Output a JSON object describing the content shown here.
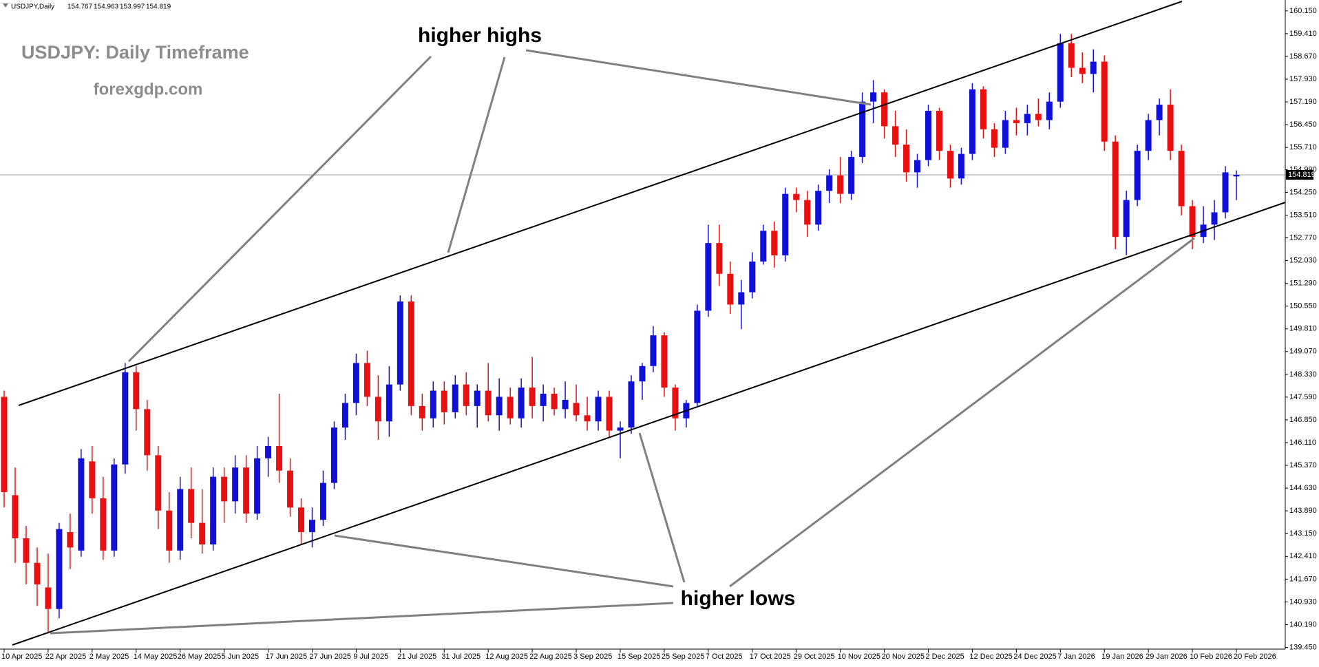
{
  "chart_data": {
    "type": "candlestick",
    "symbol": "USDJPY,Daily",
    "title": "USDJPY: Daily Timeframe",
    "watermark": "forexgdp.com",
    "annotations": [
      "higher highs",
      "higher lows"
    ],
    "up_color": "#1010d8",
    "down_color": "#e81010",
    "current_price": 154.819,
    "ylim": [
      139.395,
      160.505
    ],
    "yticks": [
      {
        "value": 139.45,
        "label": "139.450"
      },
      {
        "value": 140.19,
        "label": "140.190"
      },
      {
        "value": 140.93,
        "label": "140.930"
      },
      {
        "value": 141.67,
        "label": "141.670"
      },
      {
        "value": 142.41,
        "label": "142.410"
      },
      {
        "value": 143.15,
        "label": "143.150"
      },
      {
        "value": 143.89,
        "label": "143.890"
      },
      {
        "value": 144.63,
        "label": "144.630"
      },
      {
        "value": 145.37,
        "label": "145.370"
      },
      {
        "value": 146.11,
        "label": "146.110"
      },
      {
        "value": 146.85,
        "label": "146.850"
      },
      {
        "value": 147.59,
        "label": "147.590"
      },
      {
        "value": 148.33,
        "label": "148.330"
      },
      {
        "value": 149.07,
        "label": "149.070"
      },
      {
        "value": 149.81,
        "label": "149.810"
      },
      {
        "value": 150.55,
        "label": "150.550"
      },
      {
        "value": 151.29,
        "label": "151.290"
      },
      {
        "value": 152.03,
        "label": "152.030"
      },
      {
        "value": 152.77,
        "label": "152.770"
      },
      {
        "value": 153.51,
        "label": "153.510"
      },
      {
        "value": 154.25,
        "label": "154.250"
      },
      {
        "value": 154.99,
        "label": "154.990"
      },
      {
        "value": 155.71,
        "label": "155.710"
      },
      {
        "value": 156.45,
        "label": "156.450"
      },
      {
        "value": 157.19,
        "label": "157.190"
      },
      {
        "value": 157.93,
        "label": "157.930"
      },
      {
        "value": 158.67,
        "label": "158.670"
      },
      {
        "value": 159.41,
        "label": "159.410"
      },
      {
        "value": 160.15,
        "label": "160.150"
      }
    ],
    "categories": [
      "10 Apr 2025",
      null,
      null,
      null,
      "22 Apr 2025",
      null,
      null,
      null,
      "2 May 2025",
      null,
      null,
      null,
      "14 May 2025",
      null,
      null,
      null,
      "26 May 2025",
      null,
      null,
      null,
      "5 Jun 2025",
      null,
      null,
      null,
      "17 Jun 2025",
      null,
      null,
      null,
      "27 Jun 2025",
      null,
      null,
      null,
      "9 Jul 2025",
      null,
      null,
      null,
      "21 Jul 2025",
      null,
      null,
      null,
      "31 Jul 2025",
      null,
      null,
      null,
      "12 Aug 2025",
      null,
      null,
      null,
      "22 Aug 2025",
      null,
      null,
      null,
      "3 Sep 2025",
      null,
      null,
      null,
      "15 Sep 2025",
      null,
      null,
      null,
      "25 Sep 2025",
      null,
      null,
      null,
      "7 Oct 2025",
      null,
      null,
      null,
      "17 Oct 2025",
      null,
      null,
      null,
      "29 Oct 2025",
      null,
      null,
      null,
      "10 Nov 2025",
      null,
      null,
      null,
      "20 Nov 2025",
      null,
      null,
      null,
      "2 Dec 2025",
      null,
      null,
      null,
      "12 Dec 2025",
      null,
      null,
      null,
      "24 Dec 2025",
      null,
      null,
      null,
      "7 Jan 2026",
      null,
      null,
      null,
      "19 Jan 2026",
      null,
      null,
      null,
      "29 Jan 2026",
      null,
      null,
      null,
      "10 Feb 2026",
      null,
      null,
      null,
      "20 Feb 2026"
    ],
    "ohlc": [
      [
        147.6,
        147.8,
        144.0,
        144.5
      ],
      [
        144.4,
        145.3,
        142.2,
        143.0
      ],
      [
        143.0,
        143.4,
        141.5,
        142.2
      ],
      [
        142.2,
        142.7,
        140.8,
        141.5
      ],
      [
        141.4,
        142.5,
        139.9,
        140.7
      ],
      [
        140.7,
        143.5,
        140.4,
        143.3
      ],
      [
        143.2,
        143.8,
        142.0,
        142.7
      ],
      [
        142.6,
        145.9,
        142.4,
        145.6
      ],
      [
        145.5,
        146.0,
        143.8,
        144.3
      ],
      [
        144.3,
        145.0,
        142.3,
        142.6
      ],
      [
        142.6,
        145.6,
        142.4,
        145.4
      ],
      [
        145.4,
        148.7,
        145.1,
        148.4
      ],
      [
        148.4,
        148.6,
        146.5,
        147.2
      ],
      [
        147.2,
        147.5,
        145.2,
        145.7
      ],
      [
        145.7,
        146.0,
        143.3,
        143.9
      ],
      [
        143.9,
        144.5,
        142.2,
        142.6
      ],
      [
        142.6,
        145.0,
        142.3,
        144.6
      ],
      [
        144.6,
        145.3,
        143.0,
        143.5
      ],
      [
        143.5,
        144.6,
        142.5,
        142.8
      ],
      [
        142.8,
        145.3,
        142.6,
        145.0
      ],
      [
        145.0,
        145.3,
        143.5,
        144.2
      ],
      [
        144.2,
        145.7,
        143.8,
        145.3
      ],
      [
        145.3,
        145.7,
        143.5,
        143.8
      ],
      [
        143.8,
        146.0,
        143.6,
        145.6
      ],
      [
        145.6,
        146.3,
        145.0,
        146.0
      ],
      [
        146.0,
        147.7,
        144.8,
        145.2
      ],
      [
        145.2,
        145.6,
        143.7,
        144.0
      ],
      [
        144.0,
        144.3,
        142.8,
        143.2
      ],
      [
        143.2,
        144.0,
        142.7,
        143.6
      ],
      [
        143.6,
        145.2,
        143.4,
        144.8
      ],
      [
        144.8,
        146.8,
        144.6,
        146.6
      ],
      [
        146.6,
        147.7,
        146.2,
        147.4
      ],
      [
        147.4,
        149.0,
        147.0,
        148.7
      ],
      [
        148.7,
        149.1,
        147.3,
        147.6
      ],
      [
        147.6,
        148.3,
        146.2,
        146.8
      ],
      [
        146.8,
        148.6,
        146.3,
        148.0
      ],
      [
        148.0,
        150.9,
        147.8,
        150.7
      ],
      [
        150.7,
        150.9,
        147.0,
        147.3
      ],
      [
        147.3,
        147.7,
        146.5,
        146.9
      ],
      [
        146.9,
        148.1,
        146.6,
        147.8
      ],
      [
        147.8,
        148.1,
        146.7,
        147.1
      ],
      [
        147.1,
        148.3,
        146.9,
        148.0
      ],
      [
        148.0,
        148.4,
        147.0,
        147.3
      ],
      [
        147.3,
        148.0,
        146.6,
        147.8
      ],
      [
        147.8,
        148.7,
        146.8,
        147.0
      ],
      [
        147.0,
        148.2,
        146.5,
        147.6
      ],
      [
        147.6,
        147.9,
        146.7,
        146.9
      ],
      [
        146.9,
        148.2,
        146.6,
        147.9
      ],
      [
        147.9,
        148.9,
        146.9,
        147.3
      ],
      [
        147.3,
        148.0,
        146.8,
        147.7
      ],
      [
        147.7,
        147.9,
        147.0,
        147.2
      ],
      [
        147.2,
        148.1,
        146.9,
        147.5
      ],
      [
        147.4,
        148.0,
        146.8,
        147.0
      ],
      [
        147.0,
        147.6,
        146.5,
        146.8
      ],
      [
        146.8,
        147.8,
        146.5,
        147.6
      ],
      [
        147.6,
        147.8,
        146.3,
        146.5
      ],
      [
        146.5,
        146.8,
        145.6,
        146.6
      ],
      [
        146.6,
        148.3,
        146.4,
        148.1
      ],
      [
        148.1,
        148.7,
        147.5,
        148.6
      ],
      [
        148.6,
        149.9,
        148.4,
        149.6
      ],
      [
        149.6,
        149.7,
        147.6,
        147.9
      ],
      [
        147.9,
        148.0,
        146.5,
        146.9
      ],
      [
        146.9,
        147.5,
        146.6,
        147.4
      ],
      [
        147.4,
        150.6,
        147.3,
        150.4
      ],
      [
        150.4,
        153.2,
        150.2,
        152.6
      ],
      [
        152.6,
        153.2,
        151.2,
        151.6
      ],
      [
        151.6,
        152.0,
        150.3,
        150.6
      ],
      [
        150.6,
        151.4,
        149.8,
        151.0
      ],
      [
        151.0,
        152.3,
        150.8,
        152.0
      ],
      [
        152.0,
        153.2,
        151.9,
        153.0
      ],
      [
        153.0,
        153.3,
        151.8,
        152.2
      ],
      [
        152.2,
        154.4,
        152.0,
        154.2
      ],
      [
        154.2,
        154.4,
        153.6,
        154.0
      ],
      [
        154.0,
        154.3,
        152.8,
        153.2
      ],
      [
        153.2,
        154.5,
        153.0,
        154.3
      ],
      [
        154.3,
        155.0,
        153.9,
        154.8
      ],
      [
        154.8,
        155.4,
        153.9,
        154.2
      ],
      [
        154.2,
        155.6,
        154.0,
        155.4
      ],
      [
        155.4,
        157.5,
        155.2,
        157.2
      ],
      [
        157.2,
        157.9,
        156.5,
        157.5
      ],
      [
        157.5,
        157.6,
        156.0,
        156.4
      ],
      [
        156.4,
        156.9,
        155.4,
        155.8
      ],
      [
        155.8,
        156.3,
        154.6,
        154.9
      ],
      [
        154.9,
        155.5,
        154.4,
        155.3
      ],
      [
        155.3,
        157.1,
        155.1,
        156.9
      ],
      [
        156.9,
        157.0,
        155.3,
        155.6
      ],
      [
        155.6,
        155.8,
        154.4,
        154.7
      ],
      [
        154.7,
        155.7,
        154.5,
        155.5
      ],
      [
        155.5,
        157.8,
        155.3,
        157.6
      ],
      [
        157.6,
        157.7,
        156.0,
        156.3
      ],
      [
        156.3,
        156.5,
        155.4,
        155.7
      ],
      [
        155.7,
        156.9,
        155.5,
        156.6
      ],
      [
        156.6,
        157.0,
        156.1,
        156.5
      ],
      [
        156.5,
        157.1,
        156.1,
        156.8
      ],
      [
        156.8,
        157.3,
        156.4,
        156.6
      ],
      [
        156.6,
        157.5,
        156.3,
        157.2
      ],
      [
        157.2,
        159.4,
        157.0,
        159.1
      ],
      [
        159.1,
        159.4,
        158.0,
        158.3
      ],
      [
        158.3,
        158.8,
        157.8,
        158.1
      ],
      [
        158.1,
        158.9,
        157.5,
        158.5
      ],
      [
        158.5,
        158.7,
        155.6,
        155.9
      ],
      [
        155.9,
        156.1,
        152.4,
        152.8
      ],
      [
        152.8,
        154.3,
        152.2,
        154.0
      ],
      [
        154.0,
        155.8,
        153.8,
        155.6
      ],
      [
        155.6,
        156.8,
        155.3,
        156.6
      ],
      [
        156.6,
        157.3,
        156.1,
        157.1
      ],
      [
        157.1,
        157.6,
        155.3,
        155.6
      ],
      [
        155.6,
        155.8,
        153.5,
        153.8
      ],
      [
        153.8,
        154.0,
        152.4,
        152.8
      ],
      [
        152.8,
        153.8,
        152.6,
        153.2
      ],
      [
        153.2,
        154.0,
        152.7,
        153.6
      ],
      [
        153.6,
        155.1,
        153.4,
        154.9
      ],
      [
        154.767,
        154.963,
        153.997,
        154.819
      ]
    ]
  }
}
